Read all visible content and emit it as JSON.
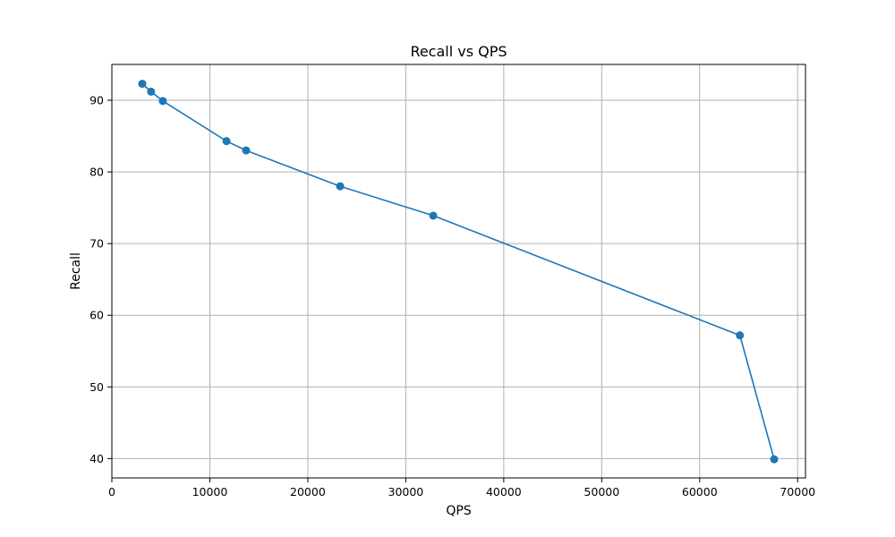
{
  "chart_data": {
    "type": "line",
    "title": "Recall vs QPS",
    "xlabel": "QPS",
    "ylabel": "Recall",
    "xlim": [
      0,
      70800
    ],
    "ylim": [
      37.3,
      95
    ],
    "xticks": [
      0,
      10000,
      20000,
      30000,
      40000,
      50000,
      60000,
      70000
    ],
    "yticks": [
      40,
      50,
      60,
      70,
      80,
      90
    ],
    "grid": true,
    "series": [
      {
        "color": "#1f77b4",
        "marker": "circle",
        "points": [
          {
            "x": 3100,
            "y": 92.3
          },
          {
            "x": 4000,
            "y": 91.2
          },
          {
            "x": 5200,
            "y": 89.9
          },
          {
            "x": 11700,
            "y": 84.3
          },
          {
            "x": 13700,
            "y": 83.0
          },
          {
            "x": 23300,
            "y": 78.0
          },
          {
            "x": 32800,
            "y": 73.9
          },
          {
            "x": 64100,
            "y": 57.2
          },
          {
            "x": 67600,
            "y": 39.9
          }
        ]
      }
    ]
  }
}
